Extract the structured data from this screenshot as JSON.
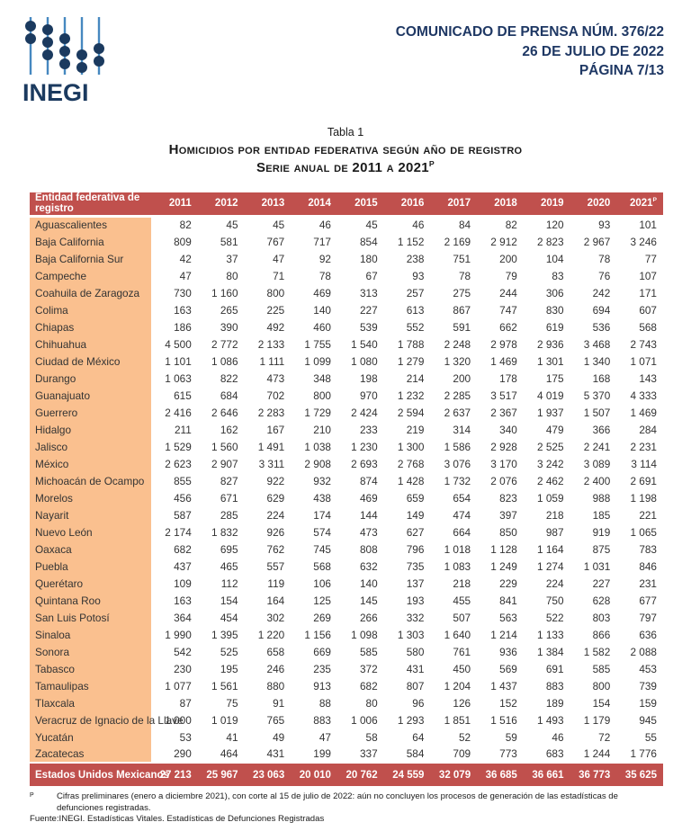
{
  "masthead": {
    "logo": "INEGI",
    "press_release": "COMUNICADO DE PRENSA NÚM. 376/22",
    "date": "26 DE JULIO DE 2022",
    "page": "PÁGINA 7/13"
  },
  "title": {
    "table_label": "Tabla 1",
    "heading": "Homicidios por entidad federativa según año de registro",
    "subheading": "Serie anual de 2011 a 2021",
    "subheading_sup": "P"
  },
  "table": {
    "entity_header": "Entidad federativa de registro",
    "years": [
      {
        "label": "2011"
      },
      {
        "label": "2012"
      },
      {
        "label": "2013"
      },
      {
        "label": "2014"
      },
      {
        "label": "2015"
      },
      {
        "label": "2016"
      },
      {
        "label": "2017"
      },
      {
        "label": "2018"
      },
      {
        "label": "2019"
      },
      {
        "label": "2020"
      },
      {
        "label": "2021",
        "sup": "P"
      }
    ],
    "rows": [
      {
        "entity": "Aguascalientes",
        "values": [
          "82",
          "45",
          "45",
          "46",
          "45",
          "46",
          "84",
          "82",
          "120",
          "93",
          "101"
        ]
      },
      {
        "entity": "Baja California",
        "values": [
          "809",
          "581",
          "767",
          "717",
          "854",
          "1 152",
          "2 169",
          "2 912",
          "2 823",
          "2 967",
          "3 246"
        ]
      },
      {
        "entity": "Baja California Sur",
        "values": [
          "42",
          "37",
          "47",
          "92",
          "180",
          "238",
          "751",
          "200",
          "104",
          "78",
          "77"
        ]
      },
      {
        "entity": "Campeche",
        "values": [
          "47",
          "80",
          "71",
          "78",
          "67",
          "93",
          "78",
          "79",
          "83",
          "76",
          "107"
        ]
      },
      {
        "entity": "Coahuila de Zaragoza",
        "values": [
          "730",
          "1 160",
          "800",
          "469",
          "313",
          "257",
          "275",
          "244",
          "306",
          "242",
          "171"
        ]
      },
      {
        "entity": "Colima",
        "values": [
          "163",
          "265",
          "225",
          "140",
          "227",
          "613",
          "867",
          "747",
          "830",
          "694",
          "607"
        ]
      },
      {
        "entity": "Chiapas",
        "values": [
          "186",
          "390",
          "492",
          "460",
          "539",
          "552",
          "591",
          "662",
          "619",
          "536",
          "568"
        ]
      },
      {
        "entity": "Chihuahua",
        "values": [
          "4 500",
          "2 772",
          "2 133",
          "1 755",
          "1 540",
          "1 788",
          "2 248",
          "2 978",
          "2 936",
          "3 468",
          "2 743"
        ]
      },
      {
        "entity": "Ciudad de México",
        "values": [
          "1 101",
          "1 086",
          "1 111",
          "1 099",
          "1 080",
          "1 279",
          "1 320",
          "1 469",
          "1 301",
          "1 340",
          "1 071"
        ]
      },
      {
        "entity": "Durango",
        "values": [
          "1 063",
          "822",
          "473",
          "348",
          "198",
          "214",
          "200",
          "178",
          "175",
          "168",
          "143"
        ]
      },
      {
        "entity": "Guanajuato",
        "values": [
          "615",
          "684",
          "702",
          "800",
          "970",
          "1 232",
          "2 285",
          "3 517",
          "4 019",
          "5 370",
          "4 333"
        ]
      },
      {
        "entity": "Guerrero",
        "values": [
          "2 416",
          "2 646",
          "2 283",
          "1 729",
          "2 424",
          "2 594",
          "2 637",
          "2 367",
          "1 937",
          "1 507",
          "1 469"
        ]
      },
      {
        "entity": "Hidalgo",
        "values": [
          "211",
          "162",
          "167",
          "210",
          "233",
          "219",
          "314",
          "340",
          "479",
          "366",
          "284"
        ]
      },
      {
        "entity": "Jalisco",
        "values": [
          "1 529",
          "1 560",
          "1 491",
          "1 038",
          "1 230",
          "1 300",
          "1 586",
          "2 928",
          "2 525",
          "2 241",
          "2 231"
        ]
      },
      {
        "entity": "México",
        "values": [
          "2 623",
          "2 907",
          "3 311",
          "2 908",
          "2 693",
          "2 768",
          "3 076",
          "3 170",
          "3 242",
          "3 089",
          "3 114"
        ]
      },
      {
        "entity": "Michoacán de Ocampo",
        "values": [
          "855",
          "827",
          "922",
          "932",
          "874",
          "1 428",
          "1 732",
          "2 076",
          "2 462",
          "2 400",
          "2 691"
        ]
      },
      {
        "entity": "Morelos",
        "values": [
          "456",
          "671",
          "629",
          "438",
          "469",
          "659",
          "654",
          "823",
          "1 059",
          "988",
          "1 198"
        ]
      },
      {
        "entity": "Nayarit",
        "values": [
          "587",
          "285",
          "224",
          "174",
          "144",
          "149",
          "474",
          "397",
          "218",
          "185",
          "221"
        ]
      },
      {
        "entity": "Nuevo León",
        "values": [
          "2 174",
          "1 832",
          "926",
          "574",
          "473",
          "627",
          "664",
          "850",
          "987",
          "919",
          "1 065"
        ]
      },
      {
        "entity": "Oaxaca",
        "values": [
          "682",
          "695",
          "762",
          "745",
          "808",
          "796",
          "1 018",
          "1 128",
          "1 164",
          "875",
          "783"
        ]
      },
      {
        "entity": "Puebla",
        "values": [
          "437",
          "465",
          "557",
          "568",
          "632",
          "735",
          "1 083",
          "1 249",
          "1 274",
          "1 031",
          "846"
        ]
      },
      {
        "entity": "Querétaro",
        "values": [
          "109",
          "112",
          "119",
          "106",
          "140",
          "137",
          "218",
          "229",
          "224",
          "227",
          "231"
        ]
      },
      {
        "entity": "Quintana Roo",
        "values": [
          "163",
          "154",
          "164",
          "125",
          "145",
          "193",
          "455",
          "841",
          "750",
          "628",
          "677"
        ]
      },
      {
        "entity": "San Luis Potosí",
        "values": [
          "364",
          "454",
          "302",
          "269",
          "266",
          "332",
          "507",
          "563",
          "522",
          "803",
          "797"
        ]
      },
      {
        "entity": "Sinaloa",
        "values": [
          "1 990",
          "1 395",
          "1 220",
          "1 156",
          "1 098",
          "1 303",
          "1 640",
          "1 214",
          "1 133",
          "866",
          "636"
        ]
      },
      {
        "entity": "Sonora",
        "values": [
          "542",
          "525",
          "658",
          "669",
          "585",
          "580",
          "761",
          "936",
          "1 384",
          "1 582",
          "2 088"
        ]
      },
      {
        "entity": "Tabasco",
        "values": [
          "230",
          "195",
          "246",
          "235",
          "372",
          "431",
          "450",
          "569",
          "691",
          "585",
          "453"
        ]
      },
      {
        "entity": "Tamaulipas",
        "values": [
          "1 077",
          "1 561",
          "880",
          "913",
          "682",
          "807",
          "1 204",
          "1 437",
          "883",
          "800",
          "739"
        ]
      },
      {
        "entity": "Tlaxcala",
        "values": [
          "87",
          "75",
          "91",
          "88",
          "80",
          "96",
          "126",
          "152",
          "189",
          "154",
          "159"
        ]
      },
      {
        "entity": "Veracruz de Ignacio de la Llave",
        "values": [
          "1 000",
          "1 019",
          "765",
          "883",
          "1 006",
          "1 293",
          "1 851",
          "1 516",
          "1 493",
          "1 179",
          "945"
        ]
      },
      {
        "entity": "Yucatán",
        "values": [
          "53",
          "41",
          "49",
          "47",
          "58",
          "64",
          "52",
          "59",
          "46",
          "72",
          "55"
        ]
      },
      {
        "entity": "Zacatecas",
        "values": [
          "290",
          "464",
          "431",
          "199",
          "337",
          "584",
          "709",
          "773",
          "683",
          "1 244",
          "1 776"
        ]
      }
    ],
    "total": {
      "entity": "Estados Unidos Mexicanos",
      "values": [
        "27 213",
        "25 967",
        "23 063",
        "20 010",
        "20 762",
        "24 559",
        "32 079",
        "36 685",
        "36 661",
        "36 773",
        "35 625"
      ]
    }
  },
  "footnotes": {
    "note_marker": "P",
    "note_text": "Cifras preliminares (enero a diciembre 2021), con corte al 15 de julio de 2022: aún no concluyen los procesos de generación de las estadísticas de defunciones registradas.",
    "source_label": "Fuente:",
    "source_text": "INEGI. Estadísticas Vitales. Estadísticas de Defunciones Registradas"
  },
  "colors": {
    "header_red": "#C0504D",
    "entity_col_peach": "#FAC08F",
    "navy": "#1F3864",
    "rod_blue": "#4688C0",
    "bead_navy": "#1B3A5F",
    "body_text": "#333333"
  }
}
